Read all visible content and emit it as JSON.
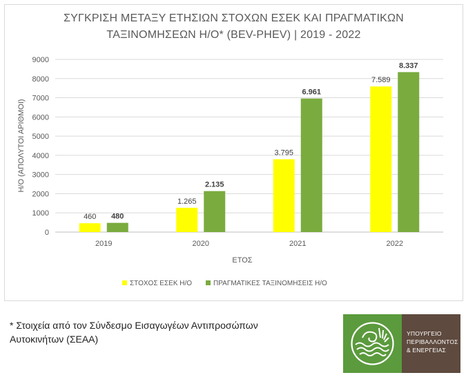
{
  "chart_data": {
    "type": "bar",
    "title_lines": [
      "ΣΥΓΚΡΙΣΗ ΜΕΤΑΞΥ ΕΤΗΣΙΩΝ ΣΤΟΧΩΝ ΕΣΕΚ ΚΑΙ ΠΡΑΓΜΑΤΙΚΩΝ",
      "ΤΑΞΙΝΟΜΗΣΕΩΝ Η/Ο* (BEV-PHEV) | 2019 - 2022"
    ],
    "xlabel": "ΕΤΟΣ",
    "ylabel": "Η/Ο (ΑΠΟΛΥΤΟΙ ΑΡΙΘΜΟΙ)",
    "ylim": [
      0,
      9000
    ],
    "yticks": [
      "0",
      "1000",
      "2000",
      "3000",
      "4000",
      "5000",
      "6000",
      "7000",
      "8000",
      "9000"
    ],
    "categories": [
      "2019",
      "2020",
      "2021",
      "2022"
    ],
    "grid": true,
    "legend_position": "bottom",
    "series": [
      {
        "name": "ΣΤΟΧΟΣ ΕΣΕΚ Η/Ο",
        "color": "#ffff00",
        "values": [
          460,
          1265,
          3795,
          7589
        ],
        "labels": [
          "460",
          "1.265",
          "3.795",
          "7.589"
        ],
        "label_bold": false
      },
      {
        "name": "ΠΡΑΓΜΑΤΙΚΕΣ ΤΑΞΙΝΟΜΗΣΕΙΣ Η/Ο",
        "color": "#7aab3f",
        "values": [
          480,
          2135,
          6961,
          8337
        ],
        "labels": [
          "480",
          "2.135",
          "6.961",
          "8.337"
        ],
        "label_bold": true
      }
    ]
  },
  "footnote": "* Στοιχεία από τον Σύνδεσμο Εισαγωγέων Αντιπροσώπων Αυτοκινήτων (ΣΕΑΑ)",
  "logo": {
    "lines": [
      "ΥΠΟΥΡΓΕΙΟ",
      "ΠΕΡΙΒΑΛΛΟΝΤΟΣ",
      "& ΕΝΕΡΓΕΙΑΣ"
    ],
    "green": "#5b9a3d",
    "brown": "#5e4a3e"
  }
}
